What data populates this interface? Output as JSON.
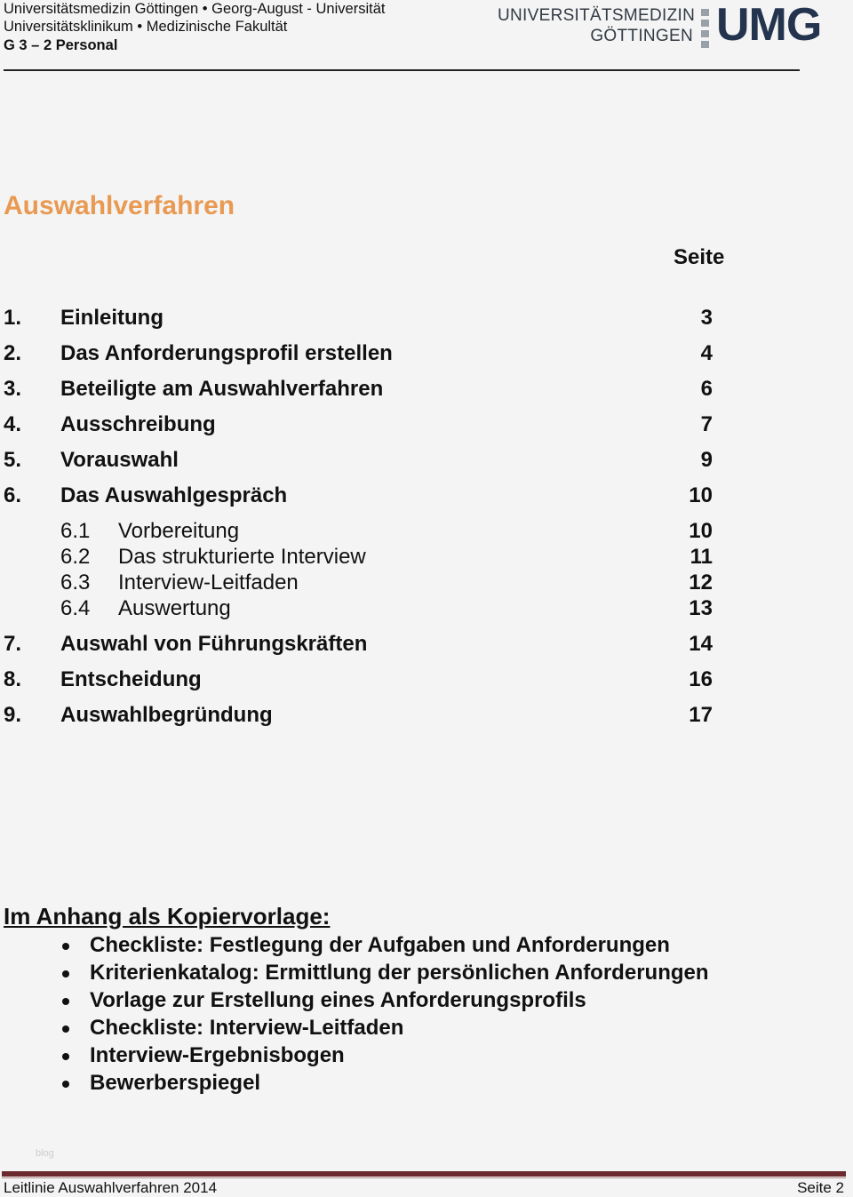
{
  "header": {
    "line1": "Universitätsmedizin Göttingen • Georg-August - Universität",
    "line2": "Universitätsklinikum • Medizinische Fakultät",
    "line3": "G 3 – 2  Personal",
    "logo": {
      "line1": "UNIVERSITÄTSMEDIZIN",
      "line2": "GÖTTINGEN",
      "mark": "UMG",
      "color": "#24344e"
    }
  },
  "title": "Auswahlverfahren",
  "title_color": "#e99a52",
  "toc": {
    "page_header": "Seite",
    "entries": [
      {
        "num": "1.",
        "label": "Einleitung",
        "page": "3",
        "level": 1
      },
      {
        "num": "2.",
        "label": "Das Anforderungsprofil erstellen",
        "page": "4",
        "level": 1
      },
      {
        "num": "3.",
        "label": "Beteiligte am Auswahlverfahren",
        "page": "6",
        "level": 1
      },
      {
        "num": "4.",
        "label": "Ausschreibung",
        "page": "7",
        "level": 1
      },
      {
        "num": "5.",
        "label": "Vorauswahl",
        "page": "9",
        "level": 1
      },
      {
        "num": "6.",
        "label": "Das Auswahlgespräch",
        "page": "10",
        "level": 1
      },
      {
        "num": "6.1",
        "label": "Vorbereitung",
        "page": "10",
        "level": 2
      },
      {
        "num": "6.2",
        "label": "Das strukturierte Interview",
        "page": "11",
        "level": 2
      },
      {
        "num": "6.3",
        "label": "Interview-Leitfaden",
        "page": "12",
        "level": 2
      },
      {
        "num": "6.4",
        "label": "Auswertung",
        "page": "13",
        "level": 2
      },
      {
        "num": "7.",
        "label": "Auswahl von Führungskräften",
        "page": "14",
        "level": 1
      },
      {
        "num": "8.",
        "label": "Entscheidung",
        "page": "16",
        "level": 1
      },
      {
        "num": "9.",
        "label": "Auswahlbegründung",
        "page": "17",
        "level": 1
      }
    ]
  },
  "appendix": {
    "heading": "Im Anhang als Kopiervorlage:",
    "items": [
      "Checkliste: Festlegung der Aufgaben und Anforderungen",
      "Kriterienkatalog: Ermittlung der persönlichen Anforderungen",
      "Vorlage zur Erstellung eines Anforderungsprofils",
      "Checkliste: Interview-Leitfaden",
      "Interview-Ergebnisbogen",
      "Bewerberspiegel"
    ]
  },
  "watermark": "blog",
  "footer": {
    "left": "Leitlinie Auswahlverfahren 2014",
    "right": "Seite 2",
    "rule_color": "#6b2a2e"
  }
}
